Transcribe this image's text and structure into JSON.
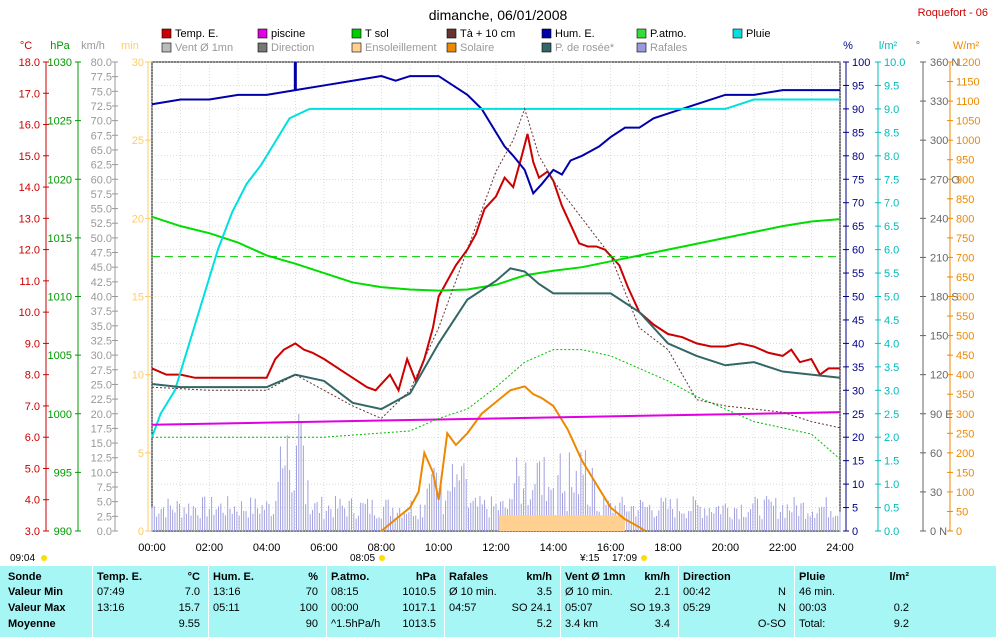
{
  "header": {
    "title": "dimanche, 06/01/2008",
    "station": "Roquefort - 06"
  },
  "legend": [
    {
      "label": "Temp. E.",
      "color": "#cc0000"
    },
    {
      "label": "piscine",
      "color": "#e000e0"
    },
    {
      "label": "T sol",
      "color": "#00cc00"
    },
    {
      "label": "Tà + 10 cm",
      "color": "#663333"
    },
    {
      "label": "Hum. E.",
      "color": "#0000aa"
    },
    {
      "label": "P.atmo.",
      "color": "#33dd33"
    },
    {
      "label": "Pluie",
      "color": "#00e0e0"
    },
    {
      "label": "Vent Ø 1mn",
      "color": "#bbbbbb"
    },
    {
      "label": "Direction",
      "color": "#777777"
    },
    {
      "label": "Ensoleillement",
      "color": "#ffd090"
    },
    {
      "label": "Solaire",
      "color": "#ee8800"
    },
    {
      "label": "P. de rosée*",
      "color": "#336666"
    },
    {
      "label": "Rafales",
      "color": "#9999dd"
    }
  ],
  "axes": {
    "temp": {
      "unit": "°C",
      "ticks": [
        "18.0",
        "17.0",
        "16.0",
        "15.0",
        "14.0",
        "13.0",
        "12.0",
        "11.0",
        "10.0",
        "9.0",
        "8.0",
        "7.0",
        "6.0",
        "5.0",
        "4.0",
        "3.0"
      ],
      "color": "#cc0000"
    },
    "press": {
      "unit": "hPa",
      "ticks": [
        "1030",
        "1025",
        "1020",
        "1015",
        "1010",
        "1005",
        "1000",
        "995",
        "990"
      ],
      "color": "#009900"
    },
    "wind": {
      "unit": "km/h",
      "ticks": [
        "80.0",
        "77.5",
        "75.0",
        "72.5",
        "70.0",
        "67.5",
        "65.0",
        "62.5",
        "60.0",
        "57.5",
        "55.0",
        "52.5",
        "50.0",
        "47.5",
        "45.0",
        "42.5",
        "40.0",
        "37.5",
        "35.0",
        "32.5",
        "30.0",
        "27.5",
        "25.0",
        "22.5",
        "20.0",
        "17.5",
        "15.0",
        "12.5",
        "10.0",
        "7.5",
        "5.0",
        "2.5",
        "0.0"
      ],
      "color": "#999999"
    },
    "sun": {
      "unit": "min",
      "ticks": [
        "30",
        "25",
        "20",
        "15",
        "10",
        "5",
        "0"
      ],
      "color": "#ffcc66"
    },
    "hum": {
      "unit": "%",
      "ticks": [
        "100",
        "95",
        "90",
        "85",
        "80",
        "75",
        "70",
        "65",
        "60",
        "55",
        "50",
        "45",
        "40",
        "35",
        "30",
        "25",
        "20",
        "15",
        "10",
        "5",
        "0"
      ],
      "color": "#000088"
    },
    "rain": {
      "unit": "l/m²",
      "ticks": [
        "10.0",
        "9.5",
        "9.0",
        "8.5",
        "8.0",
        "7.5",
        "7.0",
        "6.5",
        "6.0",
        "5.5",
        "5.0",
        "4.5",
        "4.0",
        "3.5",
        "3.0",
        "2.5",
        "2.0",
        "1.5",
        "1.0",
        "0.5",
        "0.0"
      ],
      "color": "#00bbbb"
    },
    "dir": {
      "unit": "°",
      "ticks": [
        "360 N",
        "330",
        "300",
        "270 O",
        "240",
        "210",
        "180 S",
        "150",
        "120",
        "90 E",
        "60",
        "30",
        "0 N"
      ],
      "color": "#666666"
    },
    "solar": {
      "unit": "W/m²",
      "ticks": [
        "1200",
        "1150",
        "1100",
        "1050",
        "1000",
        "950",
        "900",
        "850",
        "800",
        "750",
        "700",
        "650",
        "600",
        "550",
        "500",
        "450",
        "400",
        "350",
        "300",
        "250",
        "200",
        "150",
        "100",
        "50",
        "0"
      ],
      "color": "#ee8800"
    },
    "x": {
      "ticks": [
        "00:00",
        "02:00",
        "04:00",
        "06:00",
        "08:00",
        "10:00",
        "12:00",
        "14:00",
        "16:00",
        "18:00",
        "20:00",
        "22:00",
        "24:00"
      ]
    }
  },
  "events": {
    "sunrise": "08:05",
    "sunset": "17:09",
    "solar_noon": "¥:15",
    "start_time": "09:04"
  },
  "chart_data": {
    "type": "line",
    "title": "dimanche, 06/01/2008",
    "x_unit": "hours",
    "xlim": [
      0,
      24
    ],
    "series": [
      {
        "name": "Temp. E.",
        "axis": "temp",
        "color": "#cc0000",
        "x": [
          0,
          0.5,
          1,
          1.5,
          2,
          2.5,
          3,
          3.5,
          4,
          4.3,
          4.6,
          5,
          5.3,
          5.6,
          6,
          6.5,
          7,
          7.5,
          7.8,
          8,
          8.3,
          8.6,
          8.9,
          9.2,
          9.5,
          9.8,
          10,
          10.3,
          10.6,
          11,
          11.3,
          11.6,
          12,
          12.3,
          12.6,
          12.9,
          13.1,
          13.3,
          13.5,
          13.8,
          14,
          14.3,
          14.6,
          14.9,
          15.2,
          15.5,
          15.8,
          16,
          16.3,
          16.6,
          17,
          17.5,
          18,
          18.5,
          19,
          19.5,
          20,
          20.5,
          21,
          21.5,
          22,
          22.3,
          22.6,
          23,
          23.3,
          23.6,
          24
        ],
        "y": [
          8.2,
          8.0,
          8.0,
          7.9,
          7.9,
          7.9,
          7.9,
          7.9,
          7.9,
          8.5,
          8.8,
          9.0,
          8.8,
          8.7,
          8.5,
          8.2,
          7.9,
          7.6,
          7.5,
          7.7,
          8.0,
          7.5,
          8.5,
          7.8,
          8.5,
          9.5,
          10.5,
          11.0,
          11.5,
          12.0,
          12.5,
          13.3,
          13.7,
          14.3,
          14.0,
          15.0,
          15.7,
          14.8,
          14.3,
          14.5,
          14.2,
          13.4,
          12.8,
          12.2,
          12.1,
          12.1,
          12.0,
          11.8,
          11.5,
          10.8,
          10.0,
          9.6,
          9.3,
          9.2,
          9.0,
          8.9,
          8.9,
          9.0,
          8.9,
          8.7,
          8.6,
          8.8,
          8.4,
          8.5,
          8.0,
          8.2,
          8.2
        ]
      },
      {
        "name": "Hum. E.",
        "axis": "hum",
        "color": "#0000aa",
        "x": [
          0,
          1,
          2,
          3,
          4,
          5,
          6,
          7,
          8,
          8.5,
          9,
          9.5,
          10,
          10.5,
          11,
          11.5,
          12,
          12.3,
          12.6,
          13,
          13.3,
          13.6,
          14,
          14.3,
          14.6,
          15,
          15.3,
          15.6,
          16,
          16.5,
          17,
          17.5,
          18,
          19,
          20,
          21,
          22,
          23,
          24
        ],
        "y": [
          91,
          92,
          92,
          93,
          93,
          94,
          95,
          96,
          97,
          96,
          97,
          97,
          97,
          95,
          93,
          90,
          85,
          82,
          80,
          77,
          72,
          74,
          77,
          76,
          79,
          80,
          81,
          82,
          84,
          86,
          86,
          88,
          89,
          91,
          93,
          93,
          94,
          94,
          94
        ],
        "spike": {
          "x": 5,
          "y": 100
        }
      },
      {
        "name": "P.atmo.",
        "axis": "press",
        "color": "#00dd00",
        "x": [
          0,
          1,
          2,
          3,
          4,
          5,
          6,
          7,
          8,
          9,
          10,
          11,
          12,
          13,
          14,
          15,
          16,
          17,
          18,
          19,
          20,
          21,
          22,
          23,
          24
        ],
        "y": [
          1016.8,
          1016,
          1015.4,
          1014.6,
          1013.5,
          1012.8,
          1012.0,
          1011.2,
          1010.8,
          1010.6,
          1010.5,
          1010.6,
          1011.0,
          1011.8,
          1012.2,
          1012.5,
          1013.0,
          1013.5,
          1014.0,
          1014.5,
          1015.0,
          1015.5,
          1016.0,
          1016.4,
          1016.6
        ]
      },
      {
        "name": "Pluie",
        "axis": "rain",
        "color": "#00e0e0",
        "x": [
          0,
          0.3,
          0.8,
          1.3,
          1.8,
          2.3,
          2.8,
          3.3,
          3.8,
          4.3,
          4.8,
          5.5,
          6,
          8,
          12,
          16,
          20,
          21,
          24
        ],
        "y": [
          2.0,
          2.5,
          3.0,
          4.0,
          5.0,
          6.0,
          6.8,
          7.4,
          7.8,
          8.3,
          8.8,
          9.0,
          9.0,
          9.0,
          9.0,
          9.0,
          9.0,
          9.2,
          9.2
        ]
      },
      {
        "name": "Solaire",
        "axis": "solar",
        "color": "#ee8800",
        "x": [
          8,
          8.5,
          9,
          9.3,
          9.5,
          9.8,
          10,
          10.3,
          10.6,
          11,
          11.5,
          12,
          12.5,
          13,
          13.3,
          13.6,
          14,
          14.5,
          15,
          15.5,
          16,
          16.5,
          17,
          17.2
        ],
        "y": [
          0,
          30,
          60,
          100,
          200,
          150,
          80,
          250,
          220,
          250,
          300,
          330,
          360,
          370,
          350,
          340,
          320,
          260,
          180,
          120,
          60,
          30,
          10,
          0
        ]
      },
      {
        "name": "P. de rosée*",
        "axis": "temp",
        "color": "#336666",
        "x": [
          0,
          1,
          2,
          3,
          4,
          5,
          6,
          7,
          8,
          9,
          10,
          11,
          12,
          12.5,
          13,
          13.5,
          14,
          15,
          16,
          17,
          18,
          19,
          20,
          21,
          22,
          23,
          24
        ],
        "y": [
          7.7,
          7.6,
          7.6,
          7.6,
          7.6,
          8.0,
          7.8,
          7.1,
          6.9,
          7.4,
          9.0,
          10.4,
          11.0,
          11.4,
          11.3,
          10.9,
          10.6,
          10.6,
          10.6,
          10.0,
          9.0,
          8.6,
          8.3,
          8.4,
          8.1,
          8.0,
          7.9
        ]
      },
      {
        "name": "piscine",
        "axis": "temp",
        "color": "#e000e0",
        "x": [
          0,
          24
        ],
        "y": [
          6.4,
          6.8
        ]
      },
      {
        "name": "T sol",
        "axis": "temp",
        "color": "#00bb00",
        "x": [
          0,
          3,
          6,
          9,
          10,
          11,
          12,
          13,
          14,
          15,
          16,
          17,
          18,
          19,
          20,
          21,
          22,
          23,
          24
        ],
        "y": [
          6.0,
          6.0,
          6.0,
          6.2,
          6.6,
          6.9,
          7.6,
          8.4,
          8.8,
          8.8,
          8.6,
          8.2,
          7.8,
          7.3,
          6.9,
          6.5,
          6.3,
          6.1,
          5.3
        ],
        "dashed": true
      },
      {
        "name": "Tà + 10 cm",
        "axis": "temp",
        "color": "#663333",
        "x": [
          0,
          2,
          4,
          5,
          6,
          7,
          8,
          9,
          10,
          11,
          12,
          12.6,
          13,
          13.5,
          14,
          15,
          16,
          17,
          18,
          19,
          20,
          21,
          22,
          23,
          24
        ],
        "y": [
          7.6,
          7.5,
          7.5,
          8.0,
          7.5,
          7.0,
          6.6,
          7.5,
          9.5,
          12,
          14.5,
          15.5,
          16.5,
          15.0,
          14.2,
          13.0,
          11.8,
          9.5,
          8.8,
          7.2,
          7.0,
          6.9,
          6.8,
          6.5,
          6.3
        ],
        "dashed": true
      }
    ]
  },
  "summary": {
    "row_labels": {
      "header": "Sonde",
      "min": "Valeur Min",
      "max": "Valeur Max",
      "avg": "Moyenne"
    },
    "columns": [
      {
        "title": "Temp. E.",
        "unit": "°C",
        "rows": [
          [
            "07:49",
            "7.0"
          ],
          [
            "13:16",
            "15.7"
          ],
          [
            "",
            "9.55"
          ]
        ]
      },
      {
        "title": "Hum. E.",
        "unit": "%",
        "rows": [
          [
            "13:16",
            "70"
          ],
          [
            "05:11",
            "100"
          ],
          [
            "",
            "90"
          ]
        ]
      },
      {
        "title": "P.atmo.",
        "unit": "hPa",
        "rows": [
          [
            "08:15",
            "1010.5"
          ],
          [
            "00:00",
            "1017.1"
          ],
          [
            "^1.5hPa/h",
            "1013.5"
          ]
        ]
      },
      {
        "title": "Rafales",
        "unit": "km/h",
        "rows": [
          [
            "Ø 10 min.",
            "3.5"
          ],
          [
            "04:57",
            "SO 24.1"
          ],
          [
            "",
            "5.2"
          ]
        ]
      },
      {
        "title": "Vent Ø 1mn",
        "unit": "km/h",
        "rows": [
          [
            "Ø 10 min.",
            "2.1"
          ],
          [
            "05:07",
            "SO 19.3"
          ],
          [
            "3.4 km",
            "3.4"
          ]
        ]
      },
      {
        "title": "Direction",
        "unit": "",
        "rows": [
          [
            "00:42",
            "N"
          ],
          [
            "05:29",
            "N"
          ],
          [
            "",
            "O-SO"
          ]
        ]
      },
      {
        "title": "Pluie",
        "unit": "l/m²",
        "rows": [
          [
            "46 min.",
            ""
          ],
          [
            "00:03",
            "0.2"
          ],
          [
            "Total:",
            "9.2"
          ]
        ]
      }
    ]
  }
}
